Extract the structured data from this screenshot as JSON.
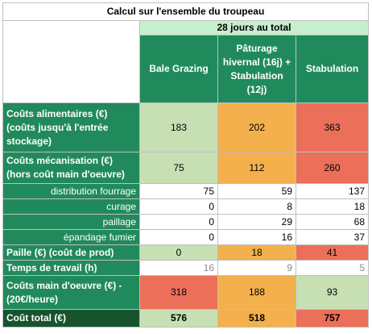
{
  "title": "Calcul sur l'ensemble du troupeau",
  "period": "28 jours au total",
  "columns": [
    "Bale Grazing",
    "Pâturage hivernal (16j) + Stabulation (12j)",
    "Stabulation"
  ],
  "rows": {
    "couts_alimentaires": {
      "label": "Coûts alimentaires (€) (coûts jusqu'à l'entrée stockage)",
      "values": [
        "183",
        "202",
        "363"
      ]
    },
    "couts_mecanisation": {
      "label": "Coûts mécanisation (€) (hors coût main d'oeuvre)",
      "values": [
        "75",
        "112",
        "260"
      ]
    },
    "distribution": {
      "label": "distribution fourrage",
      "values": [
        "75",
        "59",
        "137"
      ]
    },
    "curage": {
      "label": "curage",
      "values": [
        "0",
        "8",
        "18"
      ]
    },
    "paillage": {
      "label": "paillage",
      "values": [
        "0",
        "29",
        "68"
      ]
    },
    "epandage": {
      "label": "épandage fumier",
      "values": [
        "0",
        "16",
        "37"
      ]
    },
    "paille": {
      "label": "Paille (€) (coût de prod)",
      "values": [
        "0",
        "18",
        "41"
      ]
    },
    "temps": {
      "label": "Temps de travail (h)",
      "values": [
        "16",
        "9",
        "5"
      ]
    },
    "main_oeuvre": {
      "label": "Coûts main d'oeuvre (€) - (20€/heure)",
      "values": [
        "318",
        "188",
        "93"
      ]
    },
    "total": {
      "label": "Coût total (€)",
      "values": [
        "576",
        "518",
        "757"
      ]
    }
  },
  "colors": {
    "header_green": "#218a5d",
    "light_green": "#c6e0b4",
    "orange": "#f4b04c",
    "red": "#ec6f5a",
    "dark_green": "#17542e"
  }
}
